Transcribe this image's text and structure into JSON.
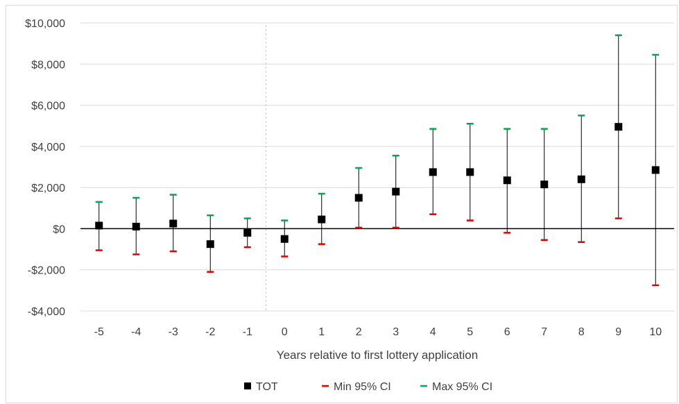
{
  "chart_data": {
    "type": "scatter",
    "title": "",
    "xlabel": "Years relative to first lottery application",
    "ylabel": "",
    "x": [
      -5,
      -4,
      -3,
      -2,
      -1,
      0,
      1,
      2,
      3,
      4,
      5,
      6,
      7,
      8,
      9,
      10
    ],
    "x_tick_labels": [
      "-5",
      "-4",
      "-3",
      "-2",
      "-1",
      "0",
      "1",
      "2",
      "3",
      "4",
      "5",
      "6",
      "7",
      "8",
      "9",
      "10"
    ],
    "y_tick_values": [
      -4000,
      -2000,
      0,
      2000,
      4000,
      6000,
      8000,
      10000
    ],
    "y_tick_labels": [
      "-$4,000",
      "-$2,000",
      "$0",
      "$2,000",
      "$4,000",
      "$6,000",
      "$8,000",
      "$10,000"
    ],
    "ylim": [
      -4000,
      10000
    ],
    "grid": "horizontal",
    "legend_position": "bottom",
    "reference_line": "dashed vertical line between -1 and 0",
    "series": [
      {
        "name": "TOT",
        "marker": "square",
        "color": "#000000",
        "values": [
          150,
          100,
          250,
          -750,
          -200,
          -500,
          450,
          1500,
          1800,
          2750,
          2750,
          2350,
          2150,
          2400,
          4950,
          2850
        ]
      },
      {
        "name": "Min 95% CI",
        "marker": "dash",
        "color": "#e00000",
        "values": [
          -1050,
          -1250,
          -1100,
          -2100,
          -900,
          -1350,
          -750,
          50,
          50,
          700,
          400,
          -200,
          -550,
          -650,
          500,
          -2750
        ]
      },
      {
        "name": "Max 95% CI",
        "marker": "dash",
        "color": "#00a650",
        "values": [
          1300,
          1500,
          1650,
          650,
          500,
          400,
          1700,
          2950,
          3550,
          4850,
          5100,
          4850,
          4850,
          5500,
          9400,
          8450
        ]
      }
    ]
  }
}
